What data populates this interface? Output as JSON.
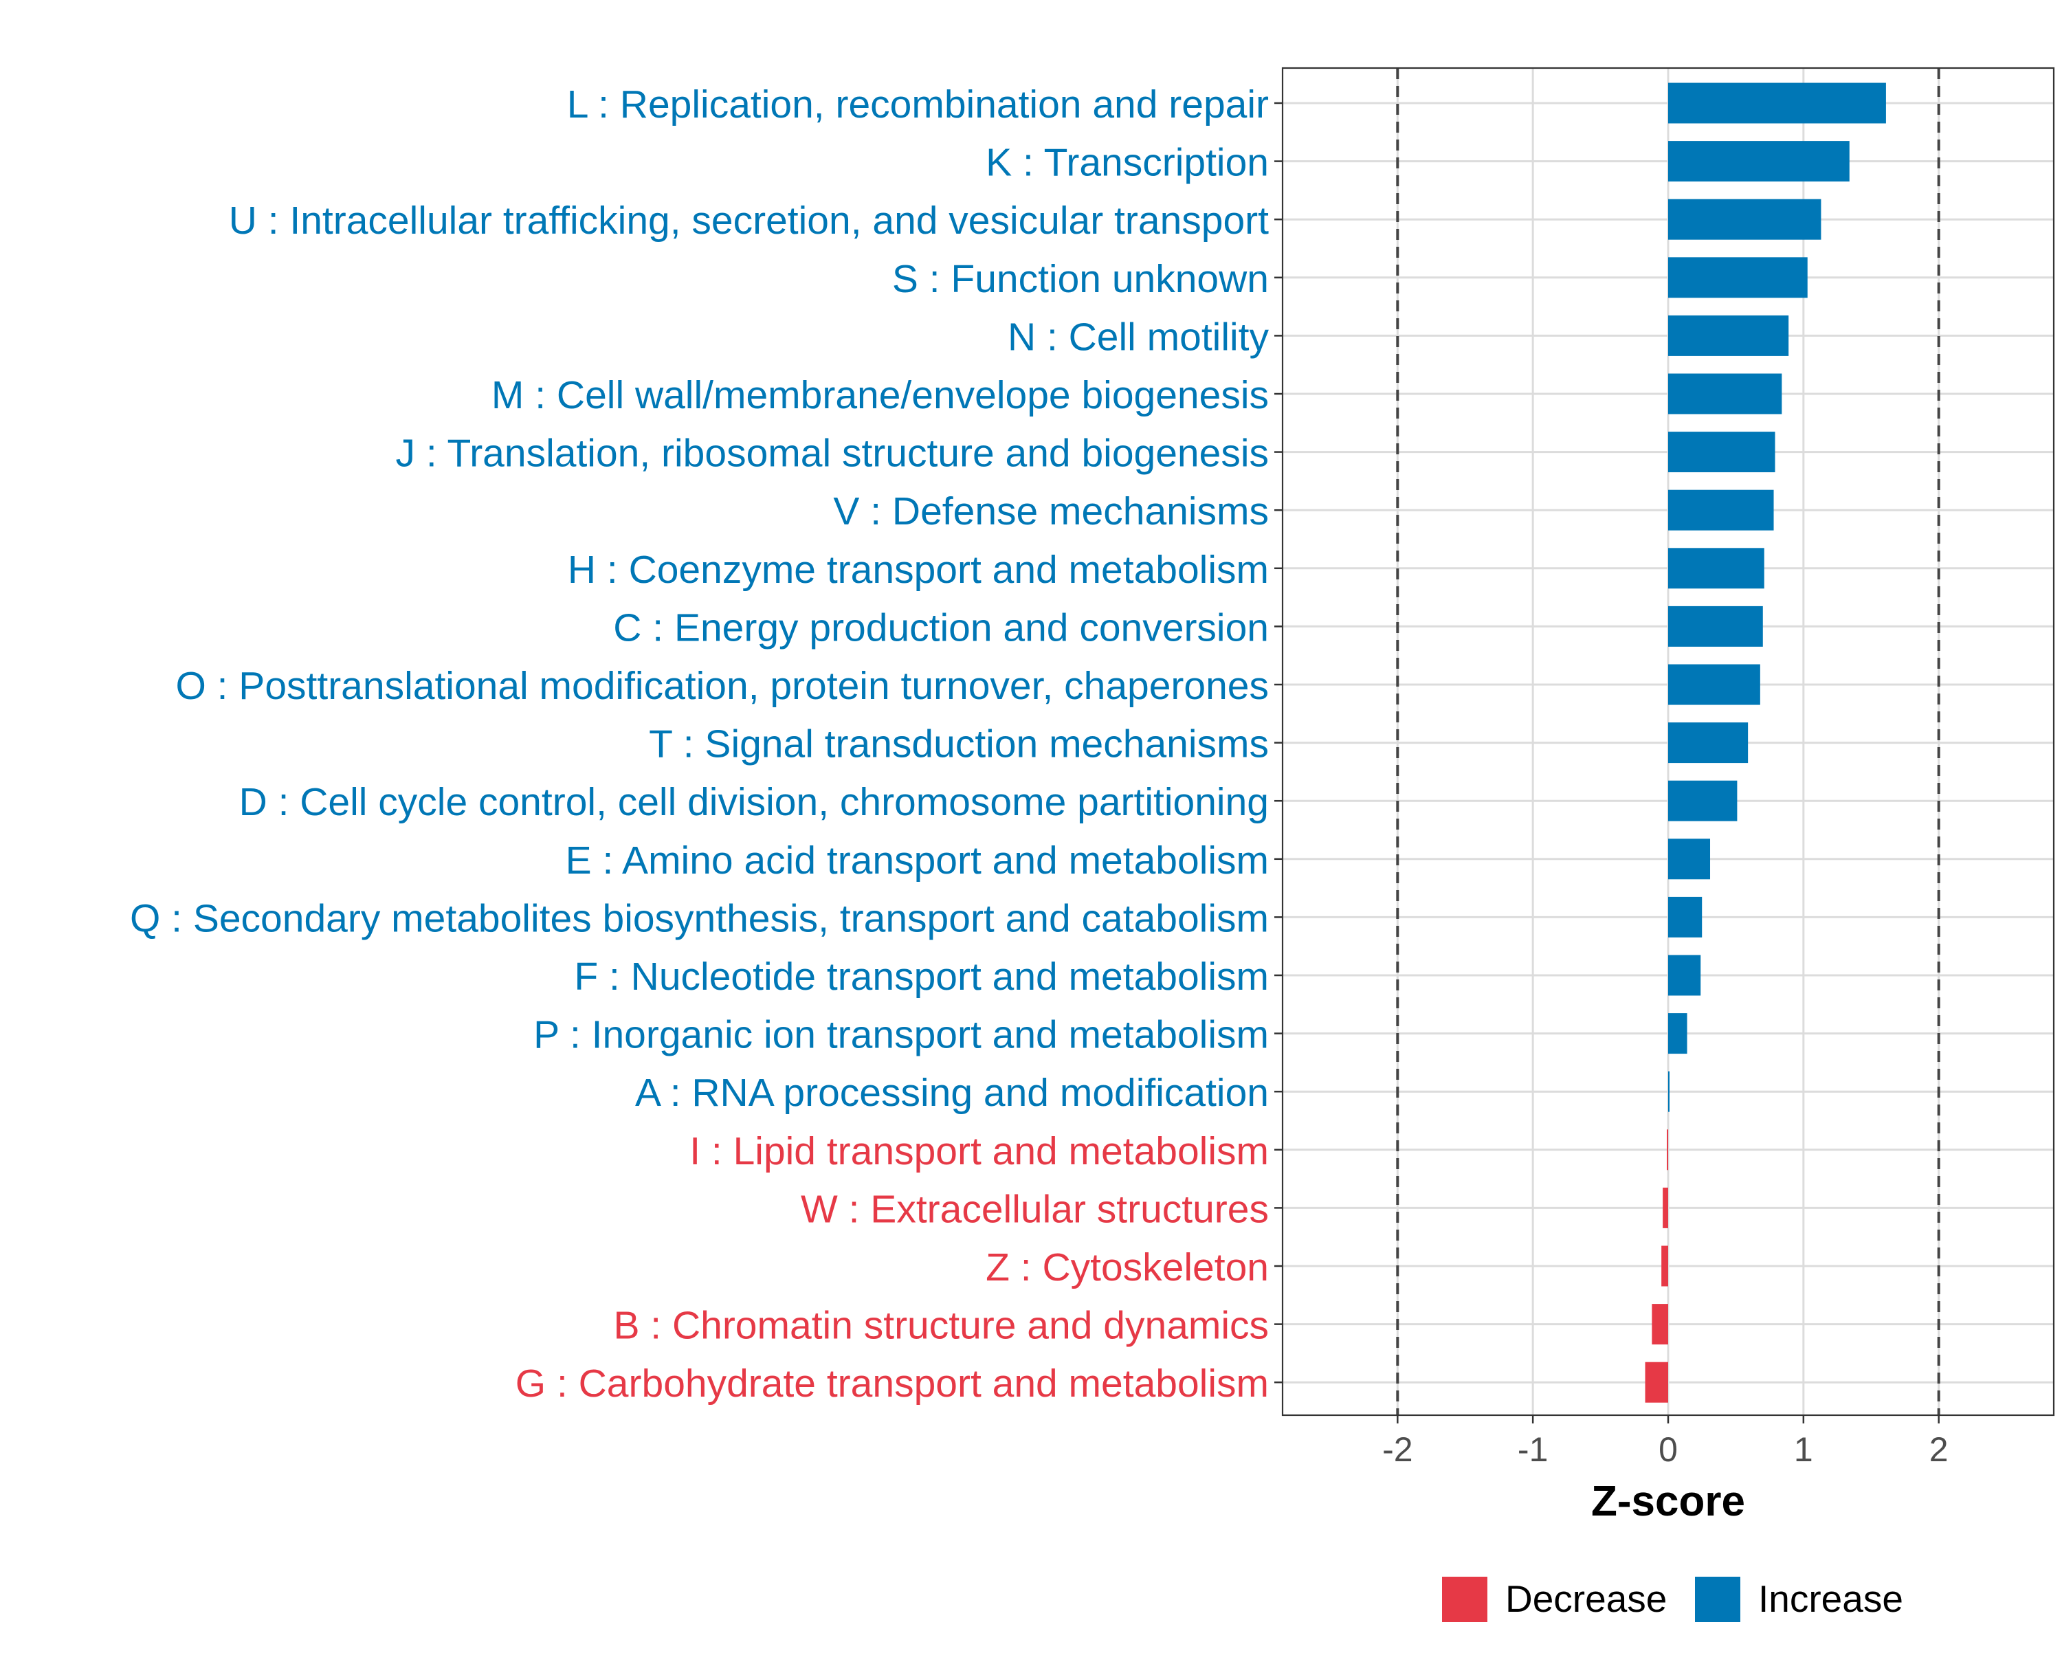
{
  "chart_data": {
    "type": "bar",
    "orientation": "horizontal",
    "title": "",
    "xlabel": "Z-score",
    "ylabel": "",
    "xlim": [
      -2.85,
      2.85
    ],
    "x_ticks": [
      -2,
      -1,
      0,
      1,
      2
    ],
    "x_tick_labels": [
      "-2",
      "-1",
      "0",
      "1",
      "2"
    ],
    "reference_lines": [
      -2,
      2
    ],
    "grid": true,
    "legend_position": "bottom",
    "colors": {
      "Decrease": "#E63946",
      "Increase": "#0077B6"
    },
    "legend": [
      {
        "label": "Decrease",
        "color": "#E63946"
      },
      {
        "label": "Increase",
        "color": "#0077B6"
      }
    ],
    "categories": [
      "L : Replication, recombination and repair",
      "K : Transcription",
      "U : Intracellular trafficking, secretion, and vesicular transport",
      "S : Function unknown",
      "N : Cell motility",
      "M : Cell wall/membrane/envelope biogenesis",
      "J : Translation, ribosomal structure and biogenesis",
      "V : Defense mechanisms",
      "H : Coenzyme transport and metabolism",
      "C : Energy production and conversion",
      "O : Posttranslational modification, protein turnover, chaperones",
      "T : Signal transduction mechanisms",
      "D : Cell cycle control, cell division, chromosome partitioning",
      "E : Amino acid transport and metabolism",
      "Q : Secondary metabolites biosynthesis, transport and catabolism",
      "F : Nucleotide transport and metabolism",
      "P : Inorganic ion transport and metabolism",
      "A : RNA processing and modification",
      "I : Lipid transport and metabolism",
      "W : Extracellular structures",
      "Z : Cytoskeleton",
      "B : Chromatin structure and dynamics",
      "G : Carbohydrate transport and metabolism"
    ],
    "values": [
      1.61,
      1.34,
      1.13,
      1.03,
      0.89,
      0.84,
      0.79,
      0.78,
      0.71,
      0.7,
      0.68,
      0.59,
      0.51,
      0.31,
      0.25,
      0.24,
      0.14,
      0.01,
      -0.01,
      -0.04,
      -0.05,
      -0.12,
      -0.17
    ],
    "groups": [
      "Increase",
      "Increase",
      "Increase",
      "Increase",
      "Increase",
      "Increase",
      "Increase",
      "Increase",
      "Increase",
      "Increase",
      "Increase",
      "Increase",
      "Increase",
      "Increase",
      "Increase",
      "Increase",
      "Increase",
      "Increase",
      "Decrease",
      "Decrease",
      "Decrease",
      "Decrease",
      "Decrease"
    ]
  }
}
